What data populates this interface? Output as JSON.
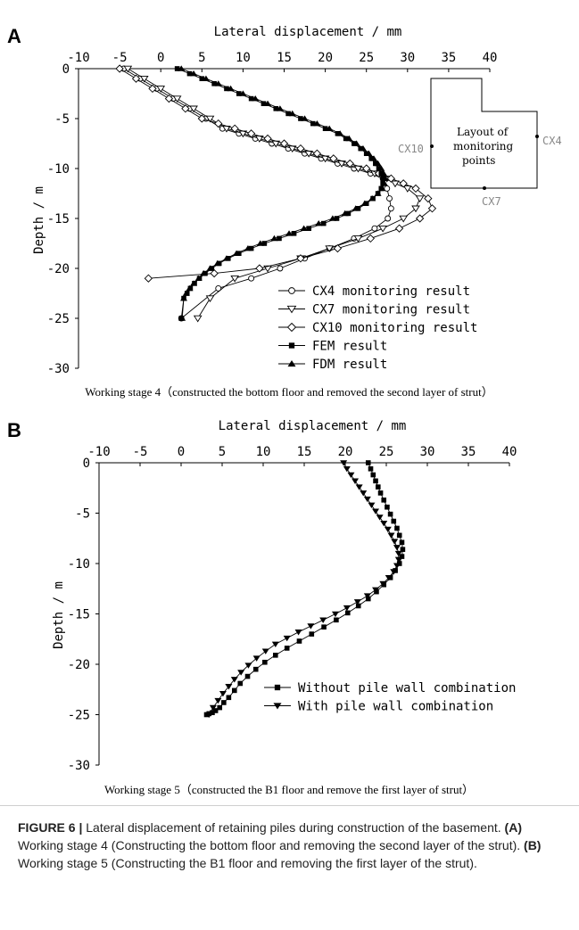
{
  "chart_data": [
    {
      "type": "scatter",
      "panel_label": "A",
      "xlabel": "Lateral displacement / mm",
      "ylabel": "Depth / m",
      "xlim": [
        -10,
        40
      ],
      "ylim": [
        -30,
        0
      ],
      "xticks": [
        "-10",
        "-5",
        "0",
        "5",
        "10",
        "15",
        "20",
        "25",
        "30",
        "35",
        "40"
      ],
      "yticks": [
        "0",
        "-5",
        "-10",
        "-15",
        "-20",
        "-25",
        "-30"
      ],
      "x_axis_position": "top",
      "grid": false,
      "legend_position": "bottom-right",
      "stage_caption": "Working stage 4（constructed the bottom floor and removed the second layer of strut）",
      "series": [
        {
          "name": "CX4  monitoring result",
          "marker": "circle-open",
          "x": [
            -4.5,
            -2.5,
            -0.5,
            1.5,
            3.5,
            5.5,
            7.5,
            9.5,
            11.5,
            13.5,
            15.5,
            17.5,
            19.5,
            21.5,
            23.5,
            25.5,
            27.0,
            27.5,
            27.8,
            28.0,
            27.6,
            26.0,
            23.5,
            20.5,
            17.5,
            14.5,
            11.0,
            7.0,
            2.5
          ],
          "y": [
            0,
            -1,
            -2,
            -3,
            -4,
            -5,
            -6,
            -6.5,
            -7,
            -7.5,
            -8,
            -8.5,
            -9,
            -9.5,
            -10,
            -10.5,
            -11,
            -12,
            -13,
            -14,
            -15,
            -16,
            -17,
            -18,
            -19,
            -20,
            -21,
            -22,
            -25
          ]
        },
        {
          "name": "CX7  monitoring result",
          "marker": "triangle-down-open",
          "x": [
            -4.0,
            -2.0,
            0.0,
            2.0,
            4.0,
            6.0,
            8.0,
            10.0,
            12.0,
            14.0,
            16.0,
            18.0,
            20.0,
            22.0,
            24.0,
            26.0,
            27.5,
            28.5,
            30.0,
            31.5,
            31.0,
            29.5,
            27.0,
            24.0,
            20.5,
            17.0,
            13.0,
            9.0,
            6.0,
            4.5
          ],
          "y": [
            0,
            -1,
            -2,
            -3,
            -4,
            -5,
            -6,
            -6.5,
            -7,
            -7.5,
            -8,
            -8.5,
            -9,
            -9.5,
            -10,
            -10.5,
            -11,
            -11.5,
            -12,
            -13,
            -14,
            -15,
            -16,
            -17,
            -18,
            -19,
            -20,
            -21,
            -23,
            -25
          ]
        },
        {
          "name": "CX10 monitoring result",
          "marker": "diamond-open",
          "x": [
            -5.0,
            -3.0,
            -1.0,
            1.0,
            3.0,
            5.0,
            7.0,
            9.0,
            11.0,
            13.0,
            15.0,
            17.0,
            19.0,
            21.0,
            23.0,
            25.0,
            26.5,
            28.0,
            29.5,
            31.0,
            32.5,
            33.0,
            31.5,
            29.0,
            25.5,
            21.5,
            17.0,
            12.0,
            6.5,
            -1.5
          ],
          "y": [
            0,
            -1,
            -2,
            -3,
            -4,
            -5,
            -5.5,
            -6,
            -6.5,
            -7,
            -7.5,
            -8,
            -8.5,
            -9,
            -9.5,
            -10,
            -10.5,
            -11,
            -11.5,
            -12,
            -13,
            -14,
            -15,
            -16,
            -17,
            -18,
            -19,
            -20,
            -20.5,
            -21
          ]
        },
        {
          "name": "FEM result",
          "marker": "square-filled",
          "x": [
            2.0,
            3.5,
            5.0,
            6.5,
            8.0,
            9.5,
            11.0,
            12.5,
            14.0,
            15.5,
            17.0,
            18.5,
            20.0,
            21.5,
            22.5,
            23.5,
            24.3,
            25.0,
            25.6,
            26.1,
            26.5,
            26.8,
            27.0,
            27.0,
            26.8,
            26.4,
            25.8,
            25.0,
            24.0,
            22.8,
            21.4,
            19.8,
            18.0,
            16.2,
            14.4,
            12.6,
            11.0,
            9.5,
            8.2,
            7.1,
            6.2,
            5.4,
            4.7,
            4.1,
            3.6,
            3.2,
            2.8,
            2.5
          ],
          "y": [
            0,
            -0.5,
            -1,
            -1.5,
            -2,
            -2.5,
            -3,
            -3.5,
            -4,
            -4.5,
            -5,
            -5.5,
            -6,
            -6.5,
            -7,
            -7.5,
            -8,
            -8.5,
            -9,
            -9.5,
            -10,
            -10.5,
            -11,
            -11.5,
            -12,
            -12.5,
            -13,
            -13.5,
            -14,
            -14.5,
            -15,
            -15.5,
            -16,
            -16.5,
            -17,
            -17.5,
            -18,
            -18.5,
            -19,
            -19.5,
            -20,
            -20.5,
            -21,
            -21.5,
            -22,
            -22.5,
            -23,
            -25
          ]
        },
        {
          "name": "FDM result",
          "marker": "triangle-up-filled",
          "x": [
            2.5,
            4.0,
            5.5,
            7.0,
            8.5,
            10.0,
            11.5,
            13.0,
            14.5,
            16.0,
            17.5,
            19.0,
            20.5,
            21.8,
            22.9,
            23.8,
            24.6,
            25.3,
            25.9,
            26.4,
            26.8,
            27.1,
            27.3,
            27.2,
            26.9,
            26.4,
            25.7,
            24.8,
            23.7,
            22.4,
            20.9,
            19.2,
            17.4,
            15.6,
            13.8,
            12.1,
            10.6,
            9.2,
            8.0,
            6.9,
            6.0,
            5.2,
            4.6,
            4.0,
            3.5,
            3.1,
            2.8,
            2.6
          ],
          "y": [
            0,
            -0.5,
            -1,
            -1.5,
            -2,
            -2.5,
            -3,
            -3.5,
            -4,
            -4.5,
            -5,
            -5.5,
            -6,
            -6.5,
            -7,
            -7.5,
            -8,
            -8.5,
            -9,
            -9.5,
            -10,
            -10.5,
            -11,
            -11.5,
            -12,
            -12.5,
            -13,
            -13.5,
            -14,
            -14.5,
            -15,
            -15.5,
            -16,
            -16.5,
            -17,
            -17.5,
            -18,
            -18.5,
            -19,
            -19.5,
            -20,
            -20.5,
            -21,
            -21.5,
            -22,
            -22.5,
            -23,
            -25
          ]
        }
      ],
      "inset": {
        "text": [
          "Layout of",
          "monitoring",
          "points"
        ],
        "labels": {
          "cx4": "CX4",
          "cx7": "CX7",
          "cx10": "CX10"
        }
      }
    },
    {
      "type": "scatter",
      "panel_label": "B",
      "xlabel": "Lateral displacement / mm",
      "ylabel": "Depth / m",
      "xlim": [
        -10,
        40
      ],
      "ylim": [
        -30,
        0
      ],
      "xticks": [
        "-10",
        "-5",
        "0",
        "5",
        "10",
        "15",
        "20",
        "25",
        "30",
        "35",
        "40"
      ],
      "yticks": [
        "0",
        "-5",
        "-10",
        "-15",
        "-20",
        "-25",
        "-30"
      ],
      "x_axis_position": "top",
      "grid": false,
      "legend_position": "bottom-right",
      "stage_caption": "Working stage 5（constructed the B1 floor and remove the first layer of strut）",
      "series": [
        {
          "name": "Without pile wall combination",
          "marker": "square-filled",
          "x": [
            22.8,
            23.1,
            23.4,
            23.7,
            24.0,
            24.3,
            24.7,
            25.1,
            25.5,
            25.9,
            26.3,
            26.6,
            26.9,
            27.0,
            26.9,
            26.6,
            26.1,
            25.5,
            24.7,
            23.8,
            22.8,
            21.6,
            20.3,
            18.9,
            17.4,
            15.9,
            14.4,
            12.9,
            11.5,
            10.2,
            9.1,
            8.1,
            7.2,
            6.5,
            5.8,
            5.2,
            4.7,
            4.2,
            3.8,
            3.4,
            3.1
          ],
          "y": [
            0,
            -0.6,
            -1.2,
            -1.8,
            -2.4,
            -3,
            -3.7,
            -4.4,
            -5.1,
            -5.8,
            -6.5,
            -7.2,
            -7.9,
            -8.6,
            -9.3,
            -10,
            -10.7,
            -11.4,
            -12.1,
            -12.8,
            -13.5,
            -14.2,
            -14.9,
            -15.6,
            -16.3,
            -17,
            -17.7,
            -18.4,
            -19.1,
            -19.8,
            -20.5,
            -21.2,
            -21.9,
            -22.6,
            -23.3,
            -23.8,
            -24.3,
            -24.6,
            -24.8,
            -24.9,
            -25
          ]
        },
        {
          "name": "With pile wall combination",
          "marker": "triangle-down-filled",
          "x": [
            19.8,
            20.2,
            20.7,
            21.2,
            21.7,
            22.2,
            22.7,
            23.2,
            23.7,
            24.2,
            24.7,
            25.2,
            25.6,
            26.0,
            26.3,
            26.5,
            26.5,
            26.3,
            25.9,
            25.3,
            24.6,
            23.7,
            22.7,
            21.5,
            20.2,
            18.8,
            17.3,
            15.8,
            14.3,
            12.9,
            11.5,
            10.3,
            9.2,
            8.2,
            7.3,
            6.5,
            5.8,
            5.1,
            4.5,
            3.9,
            3.4
          ],
          "y": [
            0,
            -0.6,
            -1.2,
            -1.8,
            -2.4,
            -3,
            -3.6,
            -4.2,
            -4.8,
            -5.4,
            -6,
            -6.6,
            -7.2,
            -7.8,
            -8.4,
            -9,
            -9.6,
            -10.2,
            -10.8,
            -11.4,
            -12,
            -12.6,
            -13.2,
            -13.8,
            -14.4,
            -15,
            -15.6,
            -16.2,
            -16.8,
            -17.4,
            -18,
            -18.7,
            -19.4,
            -20.1,
            -20.8,
            -21.5,
            -22.2,
            -22.9,
            -23.6,
            -24.3,
            -25
          ]
        }
      ]
    }
  ],
  "figure_caption": {
    "label": "FIGURE 6 |",
    "text_intro": " Lateral displacement of retaining piles during construction of the basement. ",
    "part_a_label": "(A)",
    "part_a_text": " Working stage 4 (Constructing the bottom floor and removing the second layer of the strut). ",
    "part_b_label": "(B)",
    "part_b_text": " Working stage 5 (Constructing the B1 floor and removing the first layer of the strut)."
  }
}
